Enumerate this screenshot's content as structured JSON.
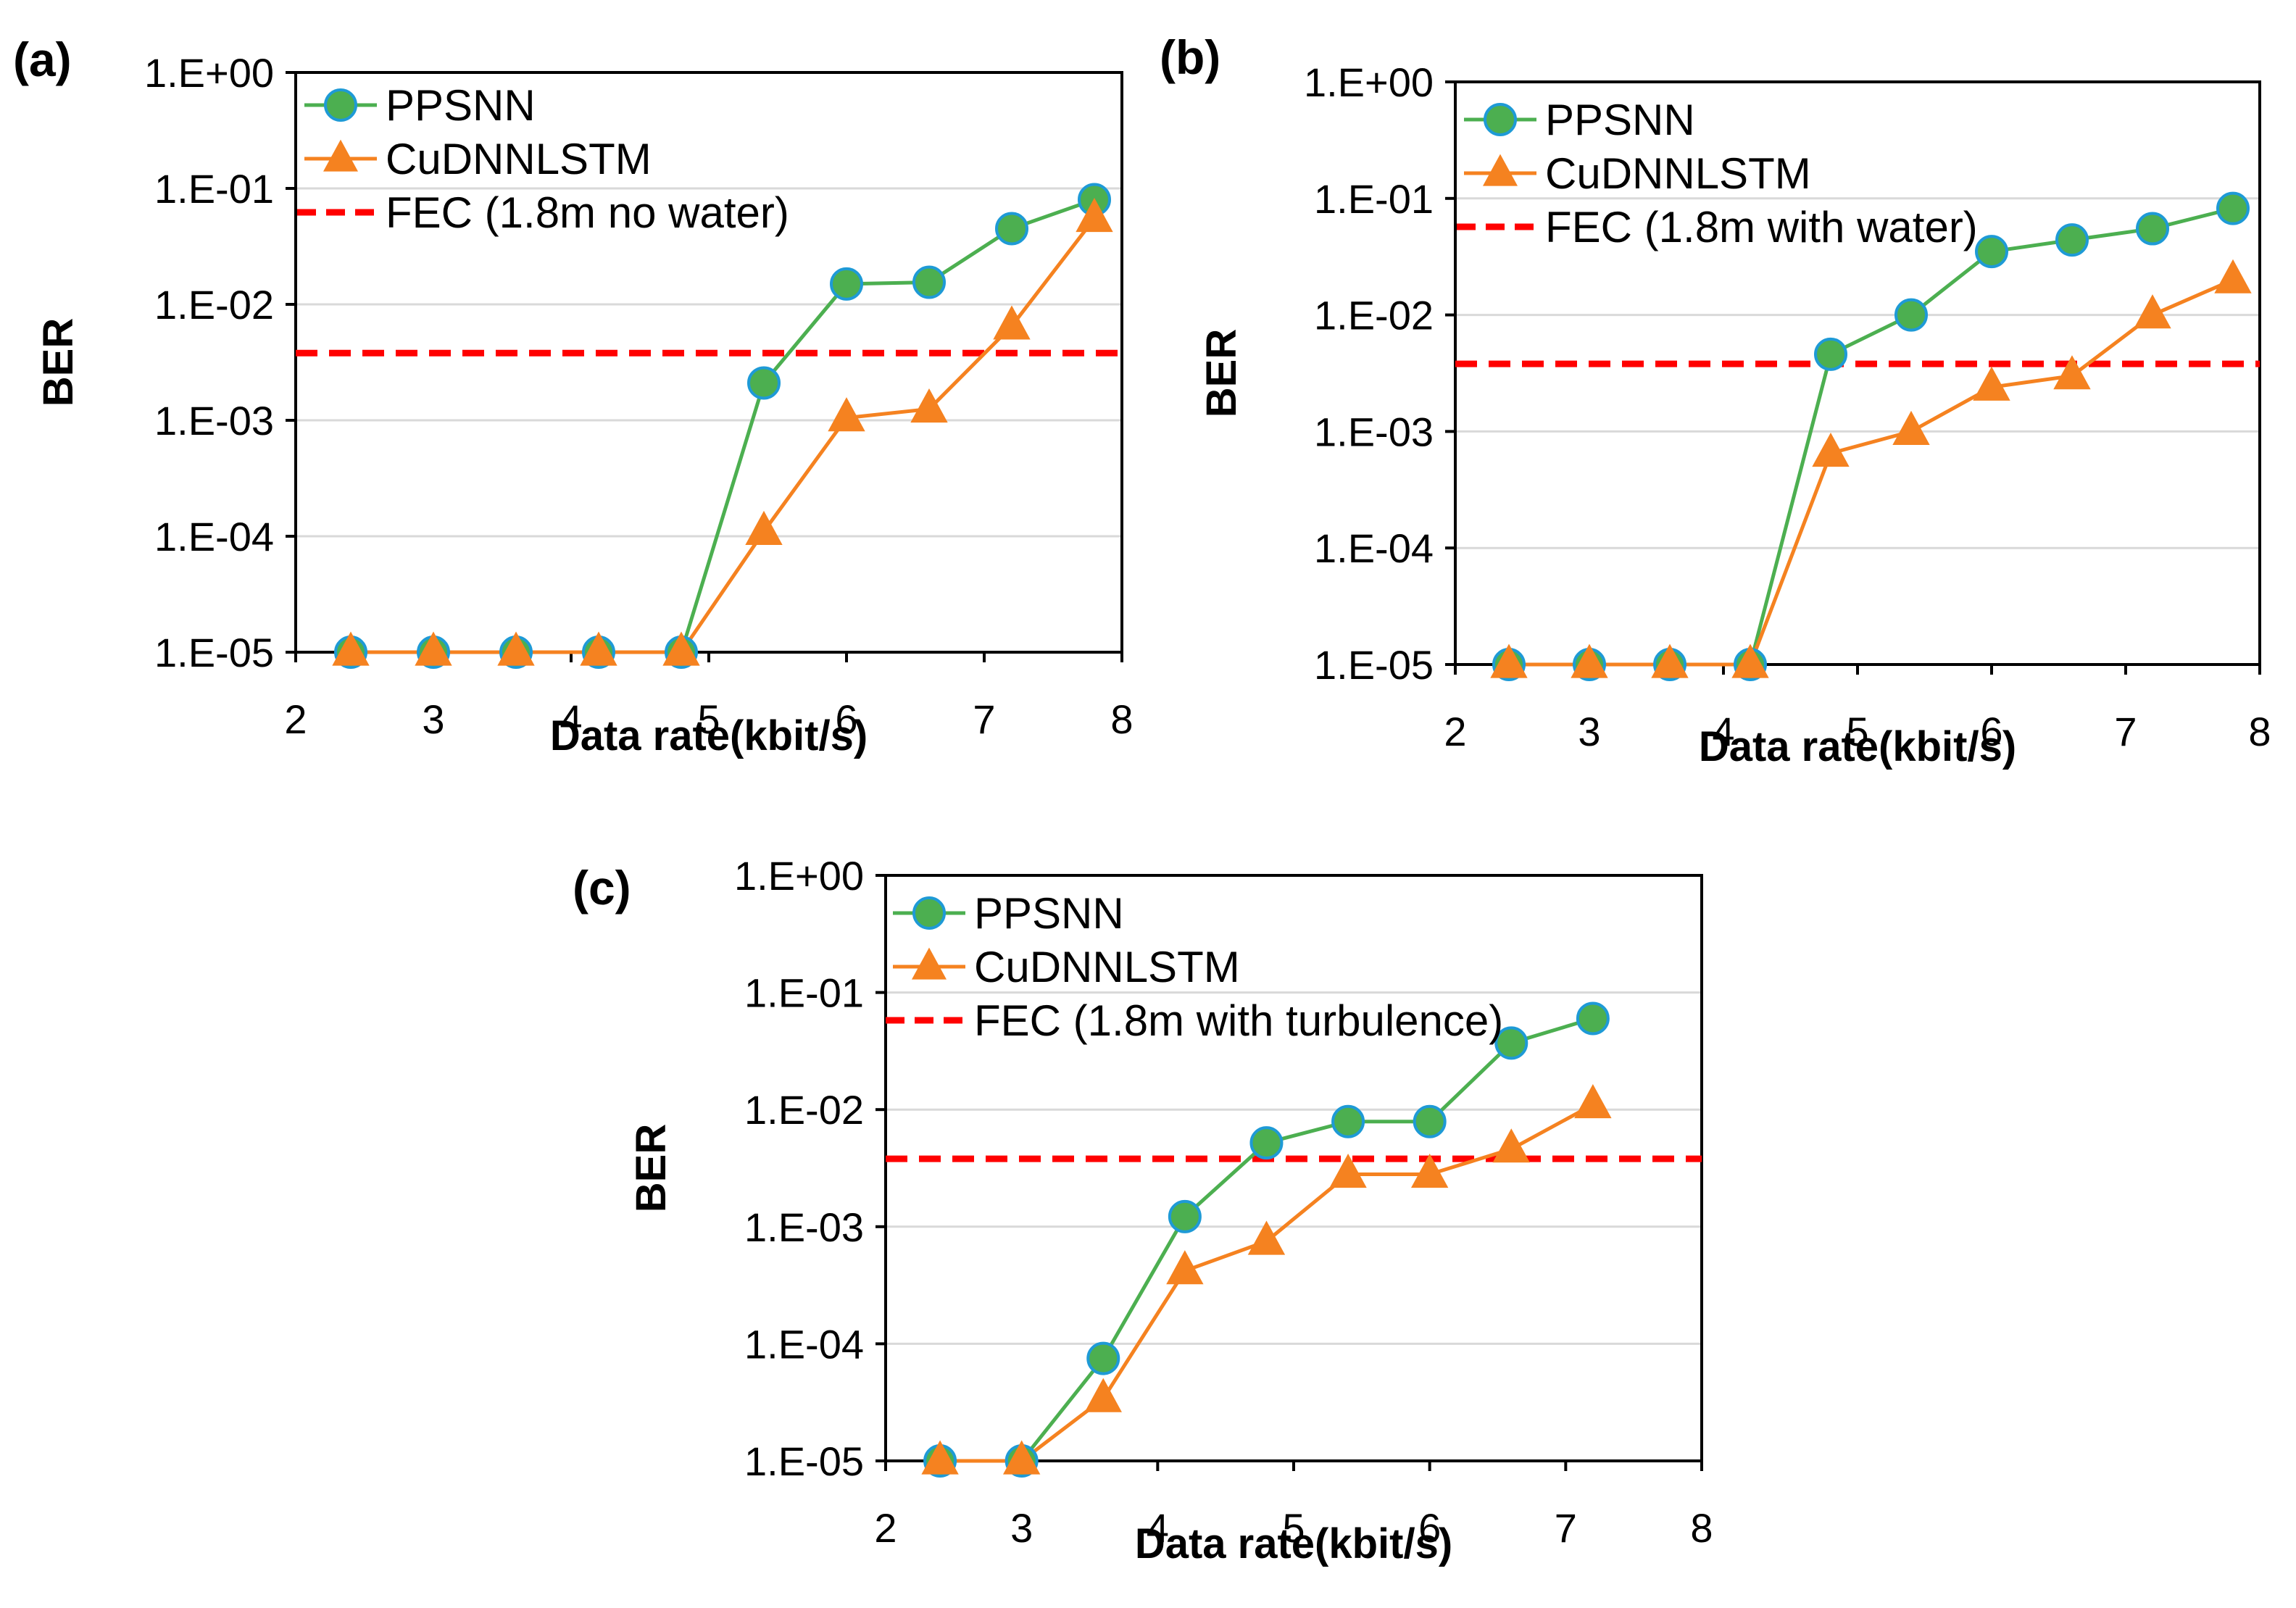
{
  "chart_data": [
    {
      "type": "line",
      "panel_label": "(a)",
      "xlabel": "Data rate(kbit/s)",
      "ylabel": "BER",
      "xlim": [
        2,
        8
      ],
      "xticks": [
        "2",
        "3",
        "4",
        "5",
        "6",
        "7",
        "8"
      ],
      "yscale": "log",
      "ylim": [
        1e-05,
        1
      ],
      "yticks": [
        "1.E-05",
        "1.E-04",
        "1.E-03",
        "1.E-02",
        "1.E-01",
        "1.E+00"
      ],
      "grid": true,
      "legend": "top-left",
      "series": [
        {
          "name": "PPSNN",
          "color": "#4CAF50",
          "marker": "circle",
          "x": [
            2.4,
            3.0,
            3.6,
            4.2,
            4.8,
            5.4,
            6.0,
            6.6,
            7.2,
            7.8
          ],
          "y": [
            1e-05,
            1e-05,
            1e-05,
            1e-05,
            1e-05,
            0.0021,
            0.015,
            0.0155,
            0.045,
            0.08
          ]
        },
        {
          "name": "CuDNNLSTM",
          "color": "#F58220",
          "marker": "triangle",
          "x": [
            2.4,
            3.0,
            3.6,
            4.2,
            4.8,
            5.4,
            6.0,
            6.6,
            7.2,
            7.8
          ],
          "y": [
            1e-05,
            1e-05,
            1e-05,
            1e-05,
            1e-05,
            0.00011,
            0.00105,
            0.00125,
            0.0065,
            0.055
          ]
        }
      ],
      "reference_line": {
        "name": "FEC (1.8m no water)",
        "color": "#FF0000",
        "y": 0.0038
      }
    },
    {
      "type": "line",
      "panel_label": "(b)",
      "xlabel": "Data rate(kbit/s)",
      "ylabel": "BER",
      "xlim": [
        2,
        8
      ],
      "xticks": [
        "2",
        "3",
        "4",
        "5",
        "6",
        "7",
        "8"
      ],
      "yscale": "log",
      "ylim": [
        1e-05,
        1
      ],
      "yticks": [
        "1.E-05",
        "1.E-04",
        "1.E-03",
        "1.E-02",
        "1.E-01",
        "1.E+00"
      ],
      "grid": true,
      "legend": "top-left",
      "series": [
        {
          "name": "PPSNN",
          "color": "#4CAF50",
          "marker": "circle",
          "x": [
            2.4,
            3.0,
            3.6,
            4.2,
            4.8,
            5.4,
            6.0,
            6.6,
            7.2,
            7.8
          ],
          "y": [
            1e-05,
            1e-05,
            1e-05,
            1e-05,
            0.0046,
            0.01,
            0.035,
            0.044,
            0.055,
            0.082
          ]
        },
        {
          "name": "CuDNNLSTM",
          "color": "#F58220",
          "marker": "triangle",
          "x": [
            2.4,
            3.0,
            3.6,
            4.2,
            4.8,
            5.4,
            6.0,
            6.6,
            7.2,
            7.8
          ],
          "y": [
            1e-05,
            1e-05,
            1e-05,
            1e-05,
            0.00065,
            0.001,
            0.0024,
            0.003,
            0.01,
            0.02
          ]
        }
      ],
      "reference_line": {
        "name": "FEC (1.8m with water)",
        "color": "#FF0000",
        "y": 0.0038
      }
    },
    {
      "type": "line",
      "panel_label": "(c)",
      "xlabel": "Data rate(kbit/s)",
      "ylabel": "BER",
      "xlim": [
        2,
        8
      ],
      "xticks": [
        "2",
        "3",
        "4",
        "5",
        "6",
        "7",
        "8"
      ],
      "yscale": "log",
      "ylim": [
        1e-05,
        1
      ],
      "yticks": [
        "1.E-05",
        "1.E-04",
        "1.E-03",
        "1.E-02",
        "1.E-01",
        "1.E+00"
      ],
      "grid": true,
      "legend": "top-left",
      "series": [
        {
          "name": "PPSNN",
          "color": "#4CAF50",
          "marker": "circle",
          "x": [
            2.4,
            3.0,
            3.6,
            4.2,
            4.8,
            5.4,
            6.0,
            6.6,
            7.2
          ],
          "y": [
            1e-05,
            1e-05,
            7.5e-05,
            0.00122,
            0.0052,
            0.0079,
            0.0079,
            0.037,
            0.06
          ]
        },
        {
          "name": "CuDNNLSTM",
          "color": "#F58220",
          "marker": "triangle",
          "x": [
            2.4,
            3.0,
            3.6,
            4.2,
            4.8,
            5.4,
            6.0,
            6.6,
            7.2
          ],
          "y": [
            1e-05,
            1e-05,
            3.4e-05,
            0.00042,
            0.00075,
            0.0028,
            0.0028,
            0.0046,
            0.011
          ]
        }
      ],
      "reference_line": {
        "name": "FEC (1.8m with turbulence)",
        "color": "#FF0000",
        "y": 0.0038
      }
    }
  ]
}
